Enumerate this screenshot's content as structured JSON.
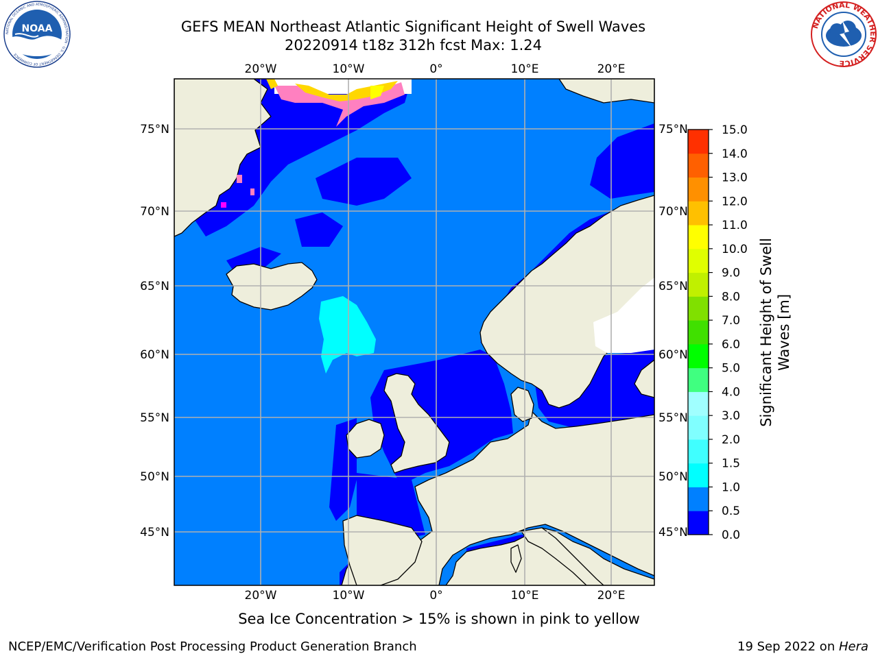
{
  "title_line1": "GEFS MEAN Northeast Atlantic Significant Height of Swell Waves",
  "title_line2": "20220914 t18z 312h fcst   Max: 1.24",
  "logos": {
    "left": "noaa-logo",
    "right": "national-weather-service-logo",
    "left_ring_text": "NATIONAL OCEANIC AND ATMOSPHERIC ADMINISTRATION · U.S. DEPARTMENT OF COMMERCE",
    "left_center_text": "NOAA",
    "right_ring_text": "NATIONAL WEATHER SERVICE"
  },
  "map": {
    "lon_ticks": [
      "20°W",
      "10°W",
      "0°",
      "10°E",
      "20°E"
    ],
    "lat_ticks": [
      "75°N",
      "70°N",
      "65°N",
      "60°N",
      "55°N",
      "50°N",
      "45°N"
    ],
    "colors": {
      "land": "#eeeedc",
      "ocean_0_05": "#0000ff",
      "ocean_05_1": "#0080ff",
      "ocean_1_15": "#00ffff",
      "grid": "#b0b0b0",
      "sea_ice": [
        "#ff00ff",
        "#ff80c0",
        "#ffd700",
        "#ffff00"
      ]
    }
  },
  "colorbar": {
    "label_line1": "Significant Height of Swell",
    "label_line2": "Waves [m]",
    "ticks": [
      "0.0",
      "0.5",
      "1.0",
      "1.5",
      "2.0",
      "3.0",
      "4.0",
      "5.0",
      "6.0",
      "7.0",
      "8.0",
      "9.0",
      "10.0",
      "11.0",
      "12.0",
      "13.0",
      "14.0",
      "15.0"
    ],
    "colors": [
      "#0000ff",
      "#0080ff",
      "#00ffff",
      "#40ffff",
      "#80ffff",
      "#a0ffff",
      "#40ff80",
      "#00ff00",
      "#40e000",
      "#80e000",
      "#c0f000",
      "#e0ff00",
      "#ffff00",
      "#ffc000",
      "#ff9000",
      "#ff6000",
      "#ff3000",
      "#ff0000"
    ]
  },
  "caption": "Sea Ice Concentration > 15% is shown in pink to yellow",
  "footer_left": "NCEP/EMC/Verification Post Processing Product Generation Branch",
  "footer_right_prefix": "19 Sep 2022 on ",
  "footer_right_host": "Hera"
}
